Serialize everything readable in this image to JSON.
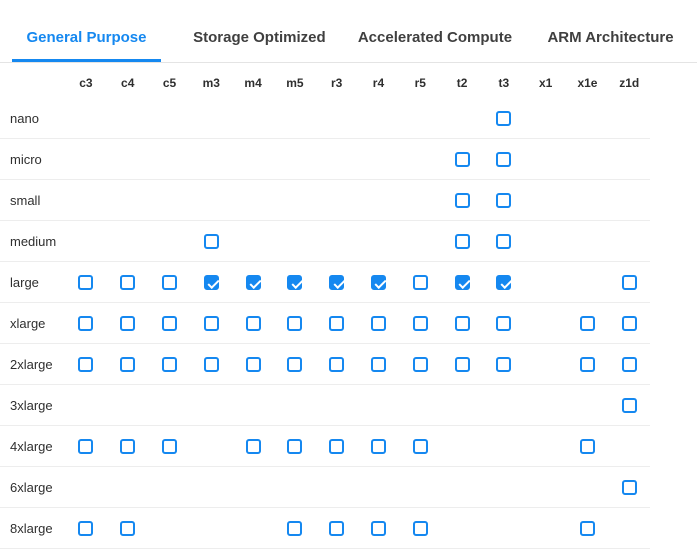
{
  "tabs": {
    "items": [
      {
        "label": "General Purpose",
        "active": true
      },
      {
        "label": "Storage Optimized",
        "active": false
      },
      {
        "label": "Accelerated Compute",
        "active": false
      },
      {
        "label": "ARM Architecture",
        "active": false
      }
    ]
  },
  "colors": {
    "accent_blue": "#1588f0",
    "tab_inactive_text": "#3f3f3f",
    "row_separator": "#ededed",
    "header_text": "#2f2f2f"
  },
  "grid": {
    "columns": [
      "c3",
      "c4",
      "c5",
      "m3",
      "m4",
      "m5",
      "r3",
      "r4",
      "r5",
      "t2",
      "t3",
      "x1",
      "x1e",
      "z1d"
    ],
    "rows": [
      {
        "label": "nano",
        "cells": [
          "",
          "",
          "",
          "",
          "",
          "",
          "",
          "",
          "",
          "",
          "unchecked",
          "",
          "",
          ""
        ]
      },
      {
        "label": "micro",
        "cells": [
          "",
          "",
          "",
          "",
          "",
          "",
          "",
          "",
          "",
          "unchecked",
          "unchecked",
          "",
          "",
          ""
        ]
      },
      {
        "label": "small",
        "cells": [
          "",
          "",
          "",
          "",
          "",
          "",
          "",
          "",
          "",
          "unchecked",
          "unchecked",
          "",
          "",
          ""
        ]
      },
      {
        "label": "medium",
        "cells": [
          "",
          "",
          "",
          "unchecked",
          "",
          "",
          "",
          "",
          "",
          "unchecked",
          "unchecked",
          "",
          "",
          ""
        ]
      },
      {
        "label": "large",
        "cells": [
          "unchecked",
          "unchecked",
          "unchecked",
          "checked",
          "checked",
          "checked",
          "checked",
          "checked",
          "unchecked",
          "checked",
          "checked",
          "",
          "",
          "unchecked"
        ]
      },
      {
        "label": "xlarge",
        "cells": [
          "unchecked",
          "unchecked",
          "unchecked",
          "unchecked",
          "unchecked",
          "unchecked",
          "unchecked",
          "unchecked",
          "unchecked",
          "unchecked",
          "unchecked",
          "",
          "unchecked",
          "unchecked"
        ]
      },
      {
        "label": "2xlarge",
        "cells": [
          "unchecked",
          "unchecked",
          "unchecked",
          "unchecked",
          "unchecked",
          "unchecked",
          "unchecked",
          "unchecked",
          "unchecked",
          "unchecked",
          "unchecked",
          "",
          "unchecked",
          "unchecked"
        ]
      },
      {
        "label": "3xlarge",
        "cells": [
          "",
          "",
          "",
          "",
          "",
          "",
          "",
          "",
          "",
          "",
          "",
          "",
          "",
          "unchecked"
        ]
      },
      {
        "label": "4xlarge",
        "cells": [
          "unchecked",
          "unchecked",
          "unchecked",
          "",
          "unchecked",
          "unchecked",
          "unchecked",
          "unchecked",
          "unchecked",
          "",
          "",
          "",
          "unchecked",
          ""
        ]
      },
      {
        "label": "6xlarge",
        "cells": [
          "",
          "",
          "",
          "",
          "",
          "",
          "",
          "",
          "",
          "",
          "",
          "",
          "",
          "unchecked"
        ]
      },
      {
        "label": "8xlarge",
        "cells": [
          "unchecked",
          "unchecked",
          "",
          "",
          "",
          "unchecked",
          "unchecked",
          "unchecked",
          "unchecked",
          "",
          "",
          "",
          "unchecked",
          ""
        ]
      }
    ]
  }
}
